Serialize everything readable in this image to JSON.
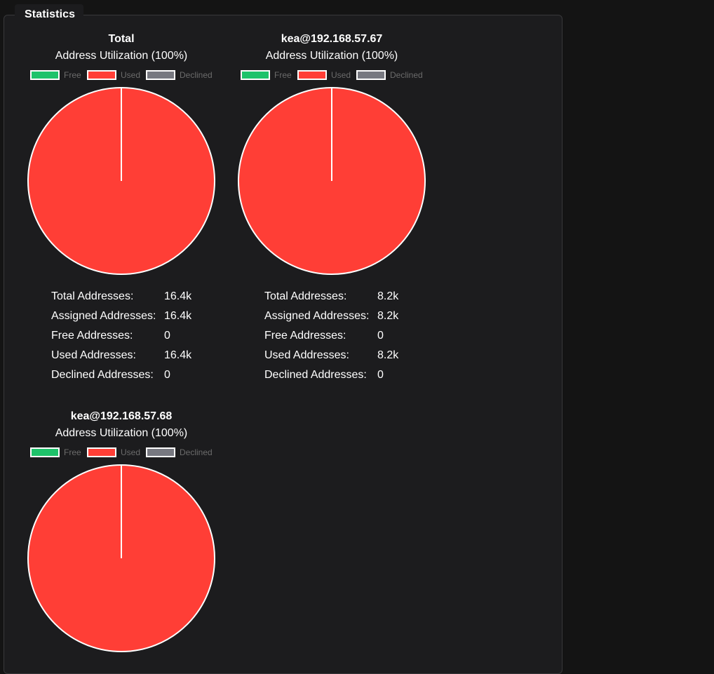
{
  "section": {
    "title": "Statistics"
  },
  "legend": {
    "free": "Free",
    "used": "Used",
    "declined": "Declined"
  },
  "colors": {
    "free": "#1ec26a",
    "used": "#ff3e36",
    "declined": "#777880",
    "background": "#1c1c1e"
  },
  "stat_labels": {
    "total": "Total Addresses:",
    "assigned": "Assigned Addresses:",
    "free": "Free Addresses:",
    "used": "Used Addresses:",
    "declined": "Declined Addresses:"
  },
  "charts": [
    {
      "title": "Total",
      "subtitle": "Address Utilization (100%)",
      "stats": {
        "total": "16.4k",
        "assigned": "16.4k",
        "free": "0",
        "used": "16.4k",
        "declined": "0"
      }
    },
    {
      "title": "kea@192.168.57.67",
      "subtitle": "Address Utilization (100%)",
      "stats": {
        "total": "8.2k",
        "assigned": "8.2k",
        "free": "0",
        "used": "8.2k",
        "declined": "0"
      }
    },
    {
      "title": "kea@192.168.57.68",
      "subtitle": "Address Utilization (100%)",
      "stats": {
        "total": "",
        "assigned": "",
        "free": "",
        "used": "",
        "declined": ""
      }
    }
  ],
  "chart_data": [
    {
      "type": "pie",
      "title": "Total",
      "subtitle": "Address Utilization (100%)",
      "categories": [
        "Free",
        "Used",
        "Declined"
      ],
      "values": [
        0,
        100,
        0
      ],
      "legend_position": "top"
    },
    {
      "type": "pie",
      "title": "kea@192.168.57.67",
      "subtitle": "Address Utilization (100%)",
      "categories": [
        "Free",
        "Used",
        "Declined"
      ],
      "values": [
        0,
        100,
        0
      ],
      "legend_position": "top"
    },
    {
      "type": "pie",
      "title": "kea@192.168.57.68",
      "subtitle": "Address Utilization (100%)",
      "categories": [
        "Free",
        "Used",
        "Declined"
      ],
      "values": [
        0,
        100,
        0
      ],
      "legend_position": "top"
    }
  ]
}
